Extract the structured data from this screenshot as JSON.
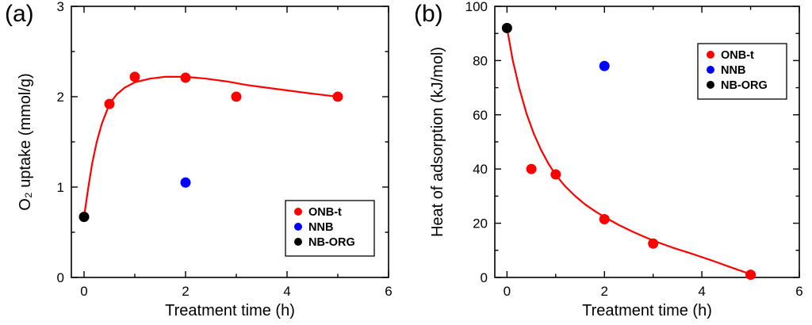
{
  "figure": {
    "background": "#ffffff"
  },
  "chart_data": [
    {
      "type": "scatter",
      "panel_label": "(a)",
      "xlabel": "Treatment time (h)",
      "ylabel": "O₂ uptake (mmol/g)",
      "xlim": [
        -0.25,
        6
      ],
      "ylim": [
        0,
        3
      ],
      "xticks": [
        0,
        2,
        4,
        6
      ],
      "yticks": [
        0,
        1,
        2,
        3
      ],
      "xminor_step": 1,
      "yminor_step": 0.5,
      "grid": false,
      "legend_position": "bottom-right",
      "series": [
        {
          "name": "ONB-t",
          "color": "#ff0000",
          "points": [
            [
              0.5,
              1.92
            ],
            [
              1,
              2.22
            ],
            [
              2,
              2.21
            ],
            [
              3,
              2.0
            ],
            [
              5,
              2.0
            ]
          ]
        },
        {
          "name": "NNB",
          "color": "#0000ff",
          "points": [
            [
              2,
              1.05
            ]
          ]
        },
        {
          "name": "NB-ORG",
          "color": "#000000",
          "points": [
            [
              0,
              0.67
            ]
          ]
        }
      ],
      "fit_curve": {
        "series": "ONB-t",
        "color": "#ff0000",
        "points": [
          [
            0,
            0.67
          ],
          [
            0.08,
            0.98
          ],
          [
            0.16,
            1.26
          ],
          [
            0.25,
            1.5
          ],
          [
            0.35,
            1.7
          ],
          [
            0.5,
            1.92
          ],
          [
            0.65,
            2.03
          ],
          [
            0.8,
            2.1
          ],
          [
            1.0,
            2.16
          ],
          [
            1.3,
            2.2
          ],
          [
            1.6,
            2.22
          ],
          [
            2.0,
            2.22
          ],
          [
            2.4,
            2.2
          ],
          [
            2.8,
            2.17
          ],
          [
            3.2,
            2.13
          ],
          [
            3.6,
            2.1
          ],
          [
            4.0,
            2.07
          ],
          [
            4.4,
            2.04
          ],
          [
            4.7,
            2.02
          ],
          [
            5.0,
            2.0
          ]
        ]
      }
    },
    {
      "type": "scatter",
      "panel_label": "(b)",
      "xlabel": "Treatment time (h)",
      "ylabel": "Heat of adsorption (kJ/mol)",
      "xlim": [
        -0.25,
        6
      ],
      "ylim": [
        0,
        100
      ],
      "xticks": [
        0,
        2,
        4,
        6
      ],
      "yticks": [
        0,
        20,
        40,
        60,
        80,
        100
      ],
      "xminor_step": 1,
      "yminor_step": 10,
      "grid": false,
      "legend_position": "top-right",
      "series": [
        {
          "name": "ONB-t",
          "color": "#ff0000",
          "points": [
            [
              0.5,
              40
            ],
            [
              1,
              38
            ],
            [
              2,
              21.5
            ],
            [
              3,
              12.5
            ],
            [
              5,
              1
            ]
          ]
        },
        {
          "name": "NNB",
          "color": "#0000ff",
          "points": [
            [
              2,
              78
            ]
          ]
        },
        {
          "name": "NB-ORG",
          "color": "#000000",
          "points": [
            [
              0,
              92
            ]
          ]
        }
      ],
      "fit_curve": {
        "series": "ONB-t",
        "color": "#ff0000",
        "points": [
          [
            0,
            92
          ],
          [
            0.12,
            80
          ],
          [
            0.25,
            70
          ],
          [
            0.4,
            60.5
          ],
          [
            0.55,
            53
          ],
          [
            0.7,
            47
          ],
          [
            0.85,
            42
          ],
          [
            1.0,
            37.8
          ],
          [
            1.2,
            33.5
          ],
          [
            1.4,
            30
          ],
          [
            1.6,
            27
          ],
          [
            1.8,
            24.5
          ],
          [
            2.0,
            22.3
          ],
          [
            2.3,
            19.3
          ],
          [
            2.6,
            16.7
          ],
          [
            3.0,
            13.6
          ],
          [
            3.4,
            11
          ],
          [
            3.8,
            8.7
          ],
          [
            4.2,
            6.3
          ],
          [
            4.6,
            3.7
          ],
          [
            5.0,
            1.2
          ]
        ]
      }
    }
  ]
}
